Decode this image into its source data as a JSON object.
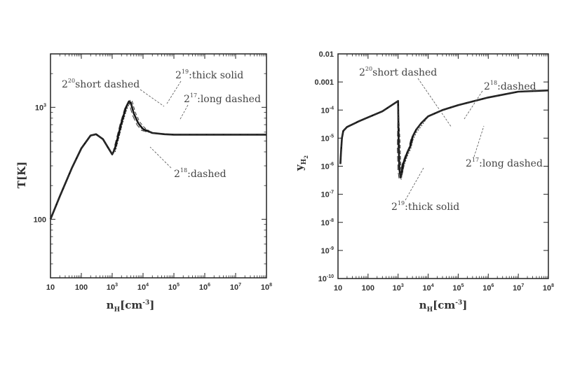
{
  "chart_data": [
    {
      "type": "line",
      "title": "",
      "xlabel": "n_H[cm^-3]",
      "ylabel": "T[K]",
      "xscale": "log",
      "yscale": "log",
      "xlim": [
        10,
        100000000.0
      ],
      "ylim": [
        30,
        3000
      ],
      "x_ticks": [
        "10",
        "100",
        "10^3",
        "10^4",
        "10^5",
        "10^6",
        "10^7",
        "10^8"
      ],
      "y_ticks": [
        "100",
        "10^3"
      ],
      "grid": false,
      "series": [
        {
          "name": "",
          "x": [
            10,
            20,
            50,
            100,
            200,
            300,
            500,
            800,
            1000,
            1200,
            1500,
            2000,
            2800,
            3500,
            4000,
            5000,
            7000,
            10000,
            20000,
            50000,
            100000,
            1000000.0,
            10000000.0,
            100000000.0
          ],
          "y": [
            100,
            160,
            290,
            430,
            560,
            575,
            520,
            420,
            380,
            420,
            530,
            730,
            1000,
            1130,
            1100,
            880,
            720,
            640,
            590,
            575,
            570,
            570,
            570,
            570
          ]
        }
      ],
      "annotations": [
        {
          "text": "2^20:short dashed"
        },
        {
          "text": "2^19:thick solid"
        },
        {
          "text": "2^17:long dashed"
        },
        {
          "text": "2^18:dashed"
        }
      ]
    },
    {
      "type": "line",
      "title": "",
      "xlabel": "n_H[cm^-3]",
      "ylabel": "y_H2",
      "xscale": "log",
      "yscale": "log",
      "xlim": [
        10,
        100000000.0
      ],
      "ylim": [
        1e-10,
        0.01
      ],
      "x_ticks": [
        "10",
        "100",
        "10^3",
        "10^4",
        "10^5",
        "10^6",
        "10^7",
        "10^8"
      ],
      "y_ticks": [
        "10^-10",
        "10^-9",
        "10^-8",
        "10^-7",
        "10^-6",
        "10^-5",
        "10^-4",
        "0.001",
        "0.01"
      ],
      "grid": false,
      "series": [
        {
          "name": "",
          "x": [
            12,
            12.5,
            13.5,
            15,
            20,
            50,
            100,
            300,
            1000,
            1050,
            1100,
            1200,
            1300,
            1500,
            2000,
            2500,
            3000,
            4000,
            6000,
            10000,
            30000,
            100000,
            1000000.0,
            10000000.0,
            100000000.0
          ],
          "y": [
            1.2e-06,
            3e-06,
            1e-05,
            1.8e-05,
            2.5e-05,
            4e-05,
            5.5e-05,
            9e-05,
            0.00021,
            5e-06,
            8e-07,
            4e-07,
            6e-07,
            1.3e-06,
            3e-06,
            5e-06,
            1.1e-05,
            2e-05,
            3.5e-05,
            6e-05,
            0.0001,
            0.00015,
            0.00028,
            0.00045,
            0.0005
          ]
        }
      ],
      "annotations": [
        {
          "text": "2^20:short dashed"
        },
        {
          "text": "2^18:dashed"
        },
        {
          "text": "2^17:long dashed"
        },
        {
          "text": "2^19:thick solid"
        }
      ]
    }
  ],
  "labels": {
    "left_y": "T[K]",
    "left_x_main": "n",
    "left_x_sub": "H",
    "left_x_unit": "[cm",
    "left_x_exp": "-3",
    "left_x_close": "]",
    "right_y_main": "y",
    "right_y_sub": "H",
    "right_y_subsub": "2",
    "annot_left": [
      {
        "base": "2",
        "exp": "20",
        "rest": "short dashed"
      },
      {
        "base": "2",
        "exp": "19",
        "rest": ":thick solid"
      },
      {
        "base": "2",
        "exp": "17",
        "rest": ":long dashed"
      },
      {
        "base": "2",
        "exp": "18",
        "rest": ":dashed"
      }
    ],
    "annot_right": [
      {
        "base": "2",
        "exp": "20",
        "rest": "short dashed"
      },
      {
        "base": "2",
        "exp": "18",
        "rest": ":dashed"
      },
      {
        "base": "2",
        "exp": "17",
        "rest": ":long dashed"
      },
      {
        "base": "2",
        "exp": "19",
        "rest": ":thick solid"
      }
    ]
  }
}
